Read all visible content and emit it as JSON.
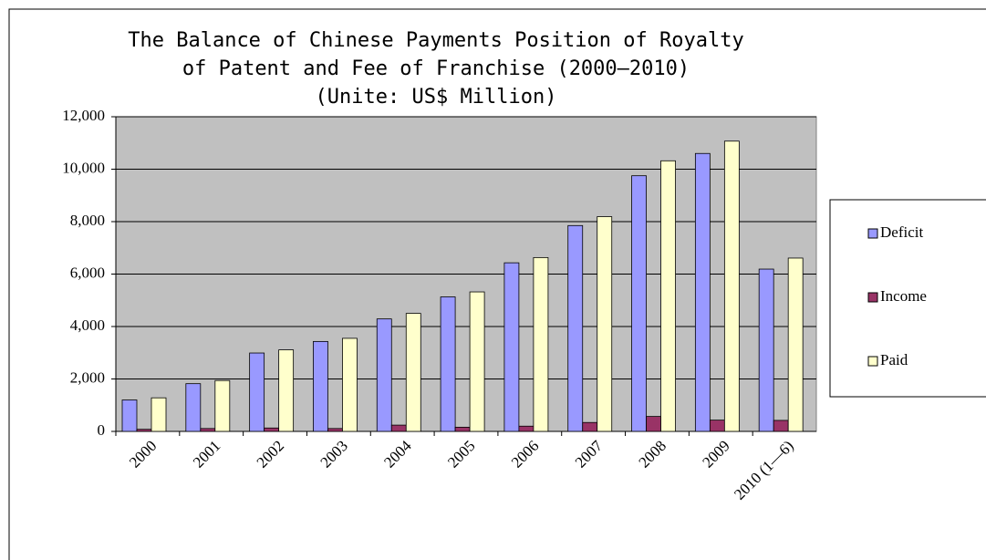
{
  "chart_data": {
    "type": "bar",
    "title": [
      "The Balance of Chinese Payments Position of Royalty",
      "of Patent and Fee of Franchise (2000—2010)"
    ],
    "subtitle": "(Unite: US$ Million)",
    "categories": [
      "2000",
      "2001",
      "2002",
      "2003",
      "2004",
      "2005",
      "2006",
      "2007",
      "2008",
      "2009",
      "2010 (1—6)"
    ],
    "series": [
      {
        "name": "Deficit",
        "color": "#9999ff",
        "values": [
          1200,
          1820,
          2990,
          3430,
          4290,
          5130,
          6430,
          7850,
          9750,
          10600,
          6190
        ]
      },
      {
        "name": "Income",
        "color": "#993366",
        "values": [
          80,
          110,
          130,
          110,
          240,
          160,
          200,
          340,
          570,
          430,
          420
        ]
      },
      {
        "name": "Paid",
        "color": "#ffffcc",
        "values": [
          1280,
          1940,
          3110,
          3550,
          4500,
          5320,
          6630,
          8190,
          10320,
          11070,
          6610
        ]
      }
    ],
    "ylim": [
      0,
      12000
    ],
    "yticks": [
      0,
      {
        "value": 2000,
        "label": "2,000"
      },
      {
        "value": 4000,
        "label": "4,000"
      },
      {
        "value": 6000,
        "label": "6,000"
      },
      {
        "value": 8000,
        "label": "8,000"
      },
      {
        "value": 10000,
        "label": "10,000"
      },
      {
        "value": 12000,
        "label": "12,000"
      }
    ],
    "grid": true,
    "plot_background": "#c0c0c0",
    "legend": "right"
  }
}
